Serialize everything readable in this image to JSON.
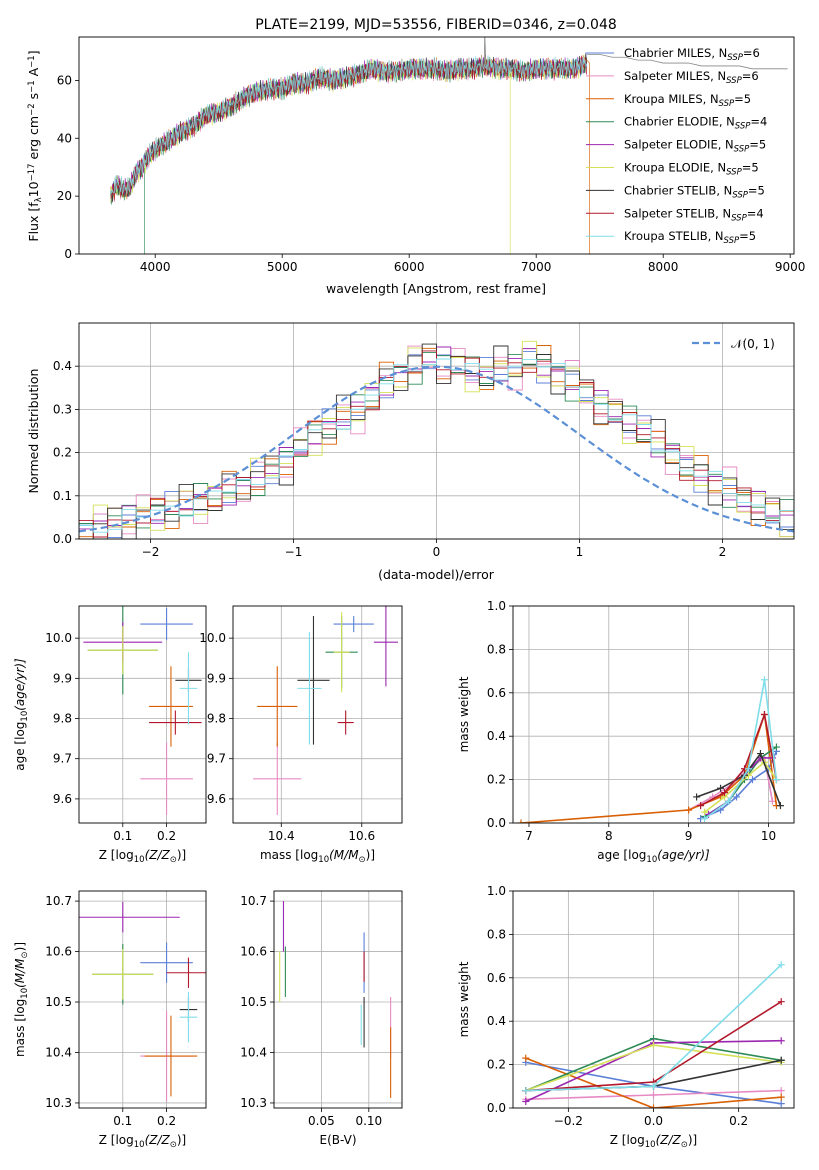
{
  "figure": {
    "title": "PLATE=2199, MJD=53556, FIBERID=0346, z=0.048"
  },
  "chart_data": [
    {
      "id": "spectrum",
      "type": "line",
      "title": "PLATE=2199, MJD=53556, FIBERID=0346, z=0.048",
      "xlabel": "wavelength [Angstrom, rest frame]",
      "ylabel_parts": {
        "a": "Flux [f",
        "b": "λ",
        "c": "10",
        "d": "−17",
        "e": " erg cm",
        "f": "−2",
        "g": " s",
        "h": "−1",
        "i": " A",
        "j": "−1",
        "k": "]"
      },
      "xlim": [
        3400,
        9030
      ],
      "ylim": [
        0,
        75
      ],
      "xticks": [
        4000,
        5000,
        6000,
        7000,
        8000,
        9000
      ],
      "yticks": [
        0,
        20,
        40,
        60
      ],
      "grid": false,
      "legend_position": "top-right",
      "x": [
        3650,
        3700,
        3750,
        3800,
        3850,
        3900,
        3950,
        4000,
        4100,
        4200,
        4300,
        4400,
        4500,
        4600,
        4700,
        4800,
        4900,
        5000,
        5100,
        5200,
        5300,
        5400,
        5500,
        5600,
        5700,
        5800,
        5900,
        6000,
        6100,
        6200,
        6300,
        6400,
        6500,
        6600,
        6700,
        6800,
        6900,
        7000,
        7100,
        7200,
        7300,
        7400
      ],
      "y": [
        20,
        24,
        22,
        23,
        28,
        30,
        34,
        36,
        39,
        42,
        44,
        48,
        49,
        51,
        54,
        56,
        57,
        57,
        59,
        59,
        61,
        60,
        61,
        62,
        64,
        63,
        63,
        64,
        64,
        64,
        63,
        64,
        64,
        65,
        64,
        64,
        63,
        64,
        64,
        64,
        64,
        66
      ],
      "model_x": [
        7400,
        7500,
        7600,
        7700,
        7800,
        7900,
        8000,
        8100,
        8200,
        8300,
        8400,
        8500,
        8600,
        8700,
        8800,
        8900,
        8980
      ],
      "model_y": [
        69,
        69,
        68,
        68,
        67,
        67,
        66,
        66,
        66,
        65,
        65,
        65,
        65,
        64,
        64,
        64,
        64
      ],
      "series": [
        {
          "name": "Chabrier MILES, N",
          "sub": "SSP",
          "eq": "=6",
          "color": "#5b7fd6"
        },
        {
          "name": "Salpeter MILES, N",
          "sub": "SSP",
          "eq": "=6",
          "color": "#e78ac3"
        },
        {
          "name": "Kroupa MILES, N",
          "sub": "SSP",
          "eq": "=5",
          "color": "#d95f02"
        },
        {
          "name": "Chabrier ELODIE, N",
          "sub": "SSP",
          "eq": "=4",
          "color": "#2e8b57"
        },
        {
          "name": "Salpeter ELODIE, N",
          "sub": "SSP",
          "eq": "=5",
          "color": "#9c27b0"
        },
        {
          "name": "Kroupa ELODIE, N",
          "sub": "SSP",
          "eq": "=5",
          "color": "#d4e157"
        },
        {
          "name": "Chabrier STELIB, N",
          "sub": "SSP",
          "eq": "=5",
          "color": "#333333"
        },
        {
          "name": "Salpeter STELIB, N",
          "sub": "SSP",
          "eq": "=4",
          "color": "#b2182b"
        },
        {
          "name": "Kroupa STELIB, N",
          "sub": "SSP",
          "eq": "=5",
          "color": "#80deea"
        }
      ]
    },
    {
      "id": "residuals",
      "type": "histogram",
      "xlabel": "(data-model)/error",
      "ylabel": "Normed distribution",
      "xlim": [
        -2.5,
        2.5
      ],
      "ylim": [
        0,
        0.5
      ],
      "xticks": [
        -2,
        -1,
        0,
        1,
        2
      ],
      "yticks": [
        0,
        0.1,
        0.2,
        0.3,
        0.4
      ],
      "grid": true,
      "legend_label": "𝒩(0, 1)",
      "legend_position": "top-right",
      "bin_width": 0.1,
      "bin_start": -2.5,
      "values": [
        0.02,
        0.03,
        0.04,
        0.05,
        0.05,
        0.06,
        0.07,
        0.08,
        0.09,
        0.1,
        0.11,
        0.12,
        0.14,
        0.16,
        0.18,
        0.21,
        0.24,
        0.26,
        0.28,
        0.3,
        0.33,
        0.36,
        0.38,
        0.4,
        0.42,
        0.41,
        0.4,
        0.39,
        0.38,
        0.39,
        0.4,
        0.42,
        0.4,
        0.38,
        0.36,
        0.34,
        0.31,
        0.29,
        0.27,
        0.25,
        0.22,
        0.2,
        0.17,
        0.15,
        0.13,
        0.11,
        0.09,
        0.08,
        0.06,
        0.05
      ]
    },
    {
      "id": "age-vs-z",
      "type": "scatter",
      "xlabel_pre": "Z [log",
      "xlabel_sub": "10",
      "xlabel_post": "(Z/Z",
      "xlabel_sun": "⊙",
      "xlabel_end": ")]",
      "ylabel_pre": "age  [log",
      "ylabel_sub": "10",
      "ylabel_post": "(age/yr)]",
      "xlim": [
        0.0,
        0.29
      ],
      "ylim": [
        9.54,
        10.08
      ],
      "xticks": [
        0.1,
        0.2
      ],
      "yticks": [
        9.6,
        9.7,
        9.8,
        9.9,
        10.0
      ],
      "points": [
        {
          "x": 0.2,
          "y": 10.035,
          "xerr": 0.06,
          "yerr": 0.04,
          "s": 0
        },
        {
          "x": 0.2,
          "y": 9.65,
          "xerr": 0.06,
          "yerr": 0.09,
          "s": 1
        },
        {
          "x": 0.21,
          "y": 9.83,
          "xerr": 0.05,
          "yerr": 0.1,
          "s": 2
        },
        {
          "x": 0.1,
          "y": 9.97,
          "xerr": 0.08,
          "yerr": 0.11,
          "s": 3
        },
        {
          "x": 0.1,
          "y": 9.99,
          "xerr": 0.09,
          "yerr": 0.05,
          "s": 4
        },
        {
          "x": 0.1,
          "y": 9.97,
          "xerr": 0.08,
          "yerr": 0.06,
          "s": 5
        },
        {
          "x": 0.25,
          "y": 9.895,
          "xerr": 0.03,
          "yerr": 0.03,
          "s": 6
        },
        {
          "x": 0.22,
          "y": 9.79,
          "xerr": 0.06,
          "yerr": 0.03,
          "s": 7
        },
        {
          "x": 0.25,
          "y": 9.875,
          "xerr": 0.02,
          "yerr": 0.09,
          "s": 8
        }
      ]
    },
    {
      "id": "age-vs-mass",
      "type": "scatter",
      "xlabel_pre": "mass [log",
      "xlabel_sub": "10",
      "xlabel_post": "(M/M",
      "xlabel_sun": "⊙",
      "xlabel_end": ")]",
      "xlim": [
        10.28,
        10.7
      ],
      "ylim": [
        9.54,
        10.08
      ],
      "xticks": [
        10.4,
        10.6
      ],
      "yticks": [
        9.6,
        9.7,
        9.8,
        9.9,
        10.0
      ],
      "points": [
        {
          "x": 10.58,
          "y": 10.035,
          "xerr": 0.05,
          "yerr": 0.02,
          "s": 0
        },
        {
          "x": 10.39,
          "y": 9.65,
          "xerr": 0.06,
          "yerr": 0.09,
          "s": 1
        },
        {
          "x": 10.39,
          "y": 9.83,
          "xerr": 0.05,
          "yerr": 0.1,
          "s": 2
        },
        {
          "x": 10.55,
          "y": 9.965,
          "xerr": 0.04,
          "yerr": 0.09,
          "s": 3
        },
        {
          "x": 10.66,
          "y": 9.99,
          "xerr": 0.03,
          "yerr": 0.11,
          "s": 4
        },
        {
          "x": 10.55,
          "y": 9.965,
          "xerr": 0.02,
          "yerr": 0.1,
          "s": 5
        },
        {
          "x": 10.48,
          "y": 9.895,
          "xerr": 0.04,
          "yerr": 0.16,
          "s": 6
        },
        {
          "x": 10.56,
          "y": 9.79,
          "xerr": 0.02,
          "yerr": 0.03,
          "s": 7
        },
        {
          "x": 10.47,
          "y": 9.875,
          "xerr": 0.03,
          "yerr": 0.14,
          "s": 8
        }
      ]
    },
    {
      "id": "weight-vs-age",
      "type": "line",
      "xlabel_pre": "age  [log",
      "xlabel_sub": "10",
      "xlabel_post": "(age/yr)]",
      "ylabel": "mass weight",
      "xlim": [
        6.8,
        10.32
      ],
      "ylim": [
        0,
        1
      ],
      "xticks": [
        7,
        8,
        9,
        10
      ],
      "yticks": [
        0,
        0.2,
        0.4,
        0.6,
        0.8,
        1.0
      ],
      "grid": true,
      "series": [
        {
          "s": 0,
          "x": [
            9.15,
            9.4,
            9.6,
            9.8,
            10.0,
            10.1
          ],
          "y": [
            0.02,
            0.06,
            0.12,
            0.2,
            0.25,
            0.33
          ]
        },
        {
          "s": 1,
          "x": [
            9.0,
            9.3,
            9.55,
            9.75,
            9.95,
            10.05
          ],
          "y": [
            0.06,
            0.12,
            0.18,
            0.25,
            0.3,
            0.1
          ]
        },
        {
          "s": 2,
          "x": [
            6.9,
            9.0,
            9.4,
            9.7,
            9.95,
            10.1
          ],
          "y": [
            0.0,
            0.06,
            0.12,
            0.22,
            0.5,
            0.08
          ]
        },
        {
          "s": 3,
          "x": [
            9.2,
            9.5,
            9.7,
            9.9,
            10.1
          ],
          "y": [
            0.03,
            0.1,
            0.2,
            0.3,
            0.35
          ]
        },
        {
          "s": 4,
          "x": [
            9.25,
            9.5,
            9.7,
            9.9,
            10.05
          ],
          "y": [
            0.04,
            0.1,
            0.22,
            0.3,
            0.3
          ]
        },
        {
          "s": 5,
          "x": [
            9.2,
            9.45,
            9.75,
            9.95,
            10.1
          ],
          "y": [
            0.05,
            0.12,
            0.22,
            0.28,
            0.2
          ]
        },
        {
          "s": 6,
          "x": [
            9.1,
            9.4,
            9.7,
            9.9,
            10.15
          ],
          "y": [
            0.12,
            0.16,
            0.22,
            0.32,
            0.08
          ]
        },
        {
          "s": 7,
          "x": [
            9.15,
            9.45,
            9.7,
            9.95,
            10.1
          ],
          "y": [
            0.08,
            0.14,
            0.25,
            0.5,
            0.2
          ]
        },
        {
          "s": 8,
          "x": [
            9.2,
            9.5,
            9.75,
            9.95,
            10.1
          ],
          "y": [
            0.02,
            0.1,
            0.25,
            0.66,
            0.2
          ]
        }
      ]
    },
    {
      "id": "mass-vs-z",
      "type": "scatter",
      "xlabel_pre": "Z [log",
      "xlabel_sub": "10",
      "xlabel_post": "(Z/Z",
      "xlabel_sun": "⊙",
      "xlabel_end": ")]",
      "ylabel_pre": "mass [log",
      "ylabel_sub": "10",
      "ylabel_post": "(M/M",
      "ylabel_sun": "⊙",
      "ylabel_end": ")]",
      "xlim": [
        0.0,
        0.29
      ],
      "ylim": [
        10.29,
        10.72
      ],
      "xticks": [
        0.1,
        0.2
      ],
      "yticks": [
        10.3,
        10.4,
        10.5,
        10.6,
        10.7
      ],
      "points": [
        {
          "x": 0.2,
          "y": 10.578,
          "xerr": 0.06,
          "yerr": 0.04,
          "s": 0
        },
        {
          "x": 0.2,
          "y": 10.393,
          "xerr": 0.06,
          "yerr": 0.09,
          "s": 1
        },
        {
          "x": 0.21,
          "y": 10.393,
          "xerr": 0.06,
          "yerr": 0.08,
          "s": 2
        },
        {
          "x": 0.1,
          "y": 10.555,
          "xerr": 0.07,
          "yerr": 0.06,
          "s": 3
        },
        {
          "x": 0.1,
          "y": 10.668,
          "xerr": 0.13,
          "yerr": 0.03,
          "s": 4
        },
        {
          "x": 0.1,
          "y": 10.555,
          "xerr": 0.07,
          "yerr": 0.05,
          "s": 5
        },
        {
          "x": 0.25,
          "y": 10.485,
          "xerr": 0.02,
          "yerr": 0.025,
          "s": 6
        },
        {
          "x": 0.25,
          "y": 10.558,
          "xerr": 0.05,
          "yerr": 0.03,
          "s": 7
        },
        {
          "x": 0.25,
          "y": 10.47,
          "xerr": 0.02,
          "yerr": 0.05,
          "s": 8
        }
      ]
    },
    {
      "id": "mass-vs-ebv",
      "type": "scatter",
      "xlabel": "E(B-V)",
      "xlim": [
        0.0,
        0.135
      ],
      "ylim": [
        10.29,
        10.72
      ],
      "xticks": [
        0.05,
        0.1
      ],
      "yticks": [
        10.3,
        10.4,
        10.5,
        10.6,
        10.7
      ],
      "points": [
        {
          "x": 0.095,
          "y": 10.578,
          "xerr": 0,
          "yerr": 0.06,
          "s": 0
        },
        {
          "x": 0.123,
          "y": 10.45,
          "xerr": 0,
          "yerr": 0.06,
          "s": 1
        },
        {
          "x": 0.123,
          "y": 10.38,
          "xerr": 0,
          "yerr": 0.07,
          "s": 2
        },
        {
          "x": 0.012,
          "y": 10.56,
          "xerr": 0,
          "yerr": 0.05,
          "s": 3
        },
        {
          "x": 0.01,
          "y": 10.65,
          "xerr": 0,
          "yerr": 0.05,
          "s": 4
        },
        {
          "x": 0.006,
          "y": 10.55,
          "xerr": 0,
          "yerr": 0.05,
          "s": 5
        },
        {
          "x": 0.095,
          "y": 10.46,
          "xerr": 0,
          "yerr": 0.05,
          "s": 6
        },
        {
          "x": 0.095,
          "y": 10.57,
          "xerr": 0,
          "yerr": 0.03,
          "s": 7
        },
        {
          "x": 0.092,
          "y": 10.455,
          "xerr": 0,
          "yerr": 0.04,
          "s": 8
        }
      ]
    },
    {
      "id": "weight-vs-z",
      "type": "line",
      "xlabel_pre": "Z [log",
      "xlabel_sub": "10",
      "xlabel_post": "(Z/Z",
      "xlabel_sun": "⊙",
      "xlabel_end": ")]",
      "ylabel": "mass weight",
      "xlim": [
        -0.33,
        0.33
      ],
      "ylim": [
        0,
        1
      ],
      "xticks": [
        -0.2,
        0.0,
        0.2
      ],
      "yticks": [
        0,
        0.2,
        0.4,
        0.6,
        0.8,
        1.0
      ],
      "grid": true,
      "series": [
        {
          "s": 0,
          "x": [
            -0.3,
            0.0,
            0.3
          ],
          "y": [
            0.21,
            0.1,
            0.02
          ]
        },
        {
          "s": 1,
          "x": [
            -0.3,
            0.0,
            0.3
          ],
          "y": [
            0.04,
            0.06,
            0.08
          ]
        },
        {
          "s": 2,
          "x": [
            -0.3,
            0.0,
            0.3
          ],
          "y": [
            0.23,
            0.0,
            0.05
          ]
        },
        {
          "s": 3,
          "x": [
            -0.3,
            0.0,
            0.3
          ],
          "y": [
            0.08,
            0.32,
            0.22
          ]
        },
        {
          "s": 4,
          "x": [
            -0.3,
            0.0,
            0.3
          ],
          "y": [
            0.03,
            0.3,
            0.31
          ]
        },
        {
          "s": 5,
          "x": [
            -0.3,
            0.0,
            0.3
          ],
          "y": [
            0.08,
            0.29,
            0.21
          ]
        },
        {
          "s": 6,
          "x": [
            -0.3,
            0.0,
            0.3
          ],
          "y": [
            0.08,
            0.1,
            0.22
          ]
        },
        {
          "s": 7,
          "x": [
            -0.3,
            0.0,
            0.3
          ],
          "y": [
            0.08,
            0.12,
            0.49
          ]
        },
        {
          "s": 8,
          "x": [
            -0.3,
            0.0,
            0.3
          ],
          "y": [
            0.08,
            0.1,
            0.66
          ]
        }
      ]
    }
  ]
}
